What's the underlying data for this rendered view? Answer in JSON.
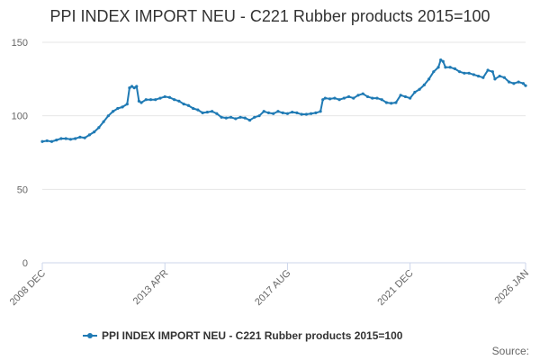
{
  "chart_data": {
    "type": "line",
    "title": "PPI INDEX IMPORT NEU - C221 Rubber products 2015=100",
    "xlabel": "",
    "ylabel": "",
    "ylim": [
      0,
      150
    ],
    "y_ticks": [
      0,
      50,
      100,
      150
    ],
    "grid": true,
    "legend_placement": "bottom",
    "x_tick_labels": [
      "2008 DEC",
      "2013 APR",
      "2017 AUG",
      "2021 DEC",
      "2026 JAN"
    ],
    "x_tick_dates": [
      "2008-12",
      "2013-04",
      "2017-08",
      "2021-12",
      "2026-01"
    ],
    "colors": {
      "series": "#1f7ab4",
      "grid": "#e6e6e6",
      "axis": "#ccd6eb"
    },
    "series": [
      {
        "name": "PPI INDEX IMPORT NEU - C221 Rubber products 2015=100",
        "points": [
          [
            "2008-12",
            82.5
          ],
          [
            "2009-02",
            83
          ],
          [
            "2009-04",
            82.5
          ],
          [
            "2009-06",
            83.5
          ],
          [
            "2009-08",
            84.5
          ],
          [
            "2009-10",
            84.5
          ],
          [
            "2009-12",
            84
          ],
          [
            "2010-02",
            84.5
          ],
          [
            "2010-04",
            85.5
          ],
          [
            "2010-06",
            85
          ],
          [
            "2010-08",
            87
          ],
          [
            "2010-10",
            89
          ],
          [
            "2010-12",
            92
          ],
          [
            "2011-02",
            96
          ],
          [
            "2011-04",
            100
          ],
          [
            "2011-06",
            103
          ],
          [
            "2011-08",
            105
          ],
          [
            "2011-10",
            106
          ],
          [
            "2011-12",
            108
          ],
          [
            "2012-01",
            119
          ],
          [
            "2012-02",
            120
          ],
          [
            "2012-03",
            119
          ],
          [
            "2012-04",
            120
          ],
          [
            "2012-05",
            110
          ],
          [
            "2012-06",
            109
          ],
          [
            "2012-08",
            111
          ],
          [
            "2012-10",
            111
          ],
          [
            "2012-12",
            111
          ],
          [
            "2013-02",
            112
          ],
          [
            "2013-04",
            113
          ],
          [
            "2013-06",
            112.5
          ],
          [
            "2013-08",
            111
          ],
          [
            "2013-10",
            110
          ],
          [
            "2013-12",
            108
          ],
          [
            "2014-02",
            107
          ],
          [
            "2014-04",
            105
          ],
          [
            "2014-06",
            104
          ],
          [
            "2014-08",
            102
          ],
          [
            "2014-10",
            102.5
          ],
          [
            "2014-12",
            103
          ],
          [
            "2015-02",
            101.5
          ],
          [
            "2015-04",
            99
          ],
          [
            "2015-06",
            98.5
          ],
          [
            "2015-08",
            99
          ],
          [
            "2015-10",
            98
          ],
          [
            "2015-12",
            99
          ],
          [
            "2016-02",
            98.5
          ],
          [
            "2016-04",
            97
          ],
          [
            "2016-06",
            99
          ],
          [
            "2016-08",
            100
          ],
          [
            "2016-10",
            103
          ],
          [
            "2016-12",
            102
          ],
          [
            "2017-02",
            101.5
          ],
          [
            "2017-04",
            103
          ],
          [
            "2017-06",
            102
          ],
          [
            "2017-08",
            101.5
          ],
          [
            "2017-10",
            102.5
          ],
          [
            "2017-12",
            102
          ],
          [
            "2018-02",
            101
          ],
          [
            "2018-04",
            101
          ],
          [
            "2018-06",
            101.5
          ],
          [
            "2018-08",
            102
          ],
          [
            "2018-10",
            103
          ],
          [
            "2018-11",
            111
          ],
          [
            "2018-12",
            112
          ],
          [
            "2019-02",
            111.5
          ],
          [
            "2019-04",
            112
          ],
          [
            "2019-06",
            111
          ],
          [
            "2019-08",
            112
          ],
          [
            "2019-10",
            113
          ],
          [
            "2019-12",
            112
          ],
          [
            "2020-02",
            114
          ],
          [
            "2020-04",
            115
          ],
          [
            "2020-06",
            113
          ],
          [
            "2020-08",
            112
          ],
          [
            "2020-10",
            112
          ],
          [
            "2020-12",
            111
          ],
          [
            "2021-02",
            109
          ],
          [
            "2021-04",
            108.5
          ],
          [
            "2021-06",
            109
          ],
          [
            "2021-08",
            114
          ],
          [
            "2021-10",
            113
          ],
          [
            "2021-12",
            112
          ],
          [
            "2022-02",
            116
          ],
          [
            "2022-04",
            118
          ],
          [
            "2022-06",
            121
          ],
          [
            "2022-08",
            125
          ],
          [
            "2022-10",
            130
          ],
          [
            "2022-12",
            133
          ],
          [
            "2023-01",
            138
          ],
          [
            "2023-02",
            137
          ],
          [
            "2023-03",
            133
          ],
          [
            "2023-05",
            133
          ],
          [
            "2023-07",
            132
          ],
          [
            "2023-09",
            130
          ],
          [
            "2023-11",
            129
          ],
          [
            "2024-01",
            129
          ],
          [
            "2024-03",
            128
          ],
          [
            "2024-05",
            127
          ],
          [
            "2024-07",
            126
          ],
          [
            "2024-09",
            131
          ],
          [
            "2024-11",
            130
          ],
          [
            "2024-12",
            125
          ],
          [
            "2025-02",
            127
          ],
          [
            "2025-04",
            126
          ],
          [
            "2025-06",
            123
          ],
          [
            "2025-08",
            122
          ],
          [
            "2025-10",
            123
          ],
          [
            "2025-12",
            122
          ],
          [
            "2026-01",
            120.5
          ]
        ]
      }
    ]
  },
  "footer": {
    "source_label": "Source:"
  }
}
